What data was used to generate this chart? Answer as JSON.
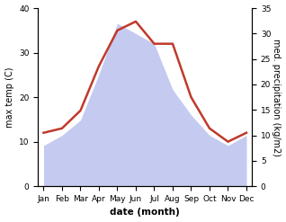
{
  "months": [
    "Jan",
    "Feb",
    "Mar",
    "Apr",
    "May",
    "Jun",
    "Jul",
    "Aug",
    "Sep",
    "Oct",
    "Nov",
    "Dec"
  ],
  "temperature": [
    12,
    13,
    17,
    27,
    35,
    37,
    32,
    32,
    20,
    13,
    10,
    12
  ],
  "precipitation": [
    8,
    10,
    13,
    22,
    32,
    30,
    28,
    19,
    14,
    10,
    8,
    10
  ],
  "temp_color": "#c0392b",
  "precip_fill_color": "#c5caf0",
  "left_ylim": [
    0,
    40
  ],
  "right_ylim": [
    0,
    35
  ],
  "left_yticks": [
    0,
    10,
    20,
    30,
    40
  ],
  "right_yticks": [
    0,
    5,
    10,
    15,
    20,
    25,
    30,
    35
  ],
  "xlabel": "date (month)",
  "ylabel_left": "max temp (C)",
  "ylabel_right": "med. precipitation (kg/m2)"
}
